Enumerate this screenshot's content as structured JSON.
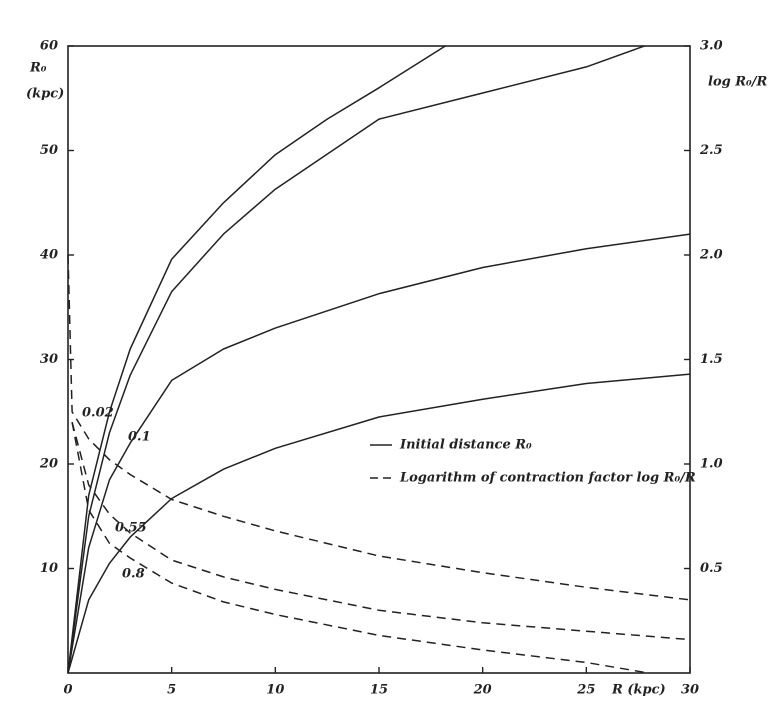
{
  "chart_data": {
    "type": "line",
    "x_label": "R (kpc)",
    "y_label": "R₀",
    "y_unit": "(kpc)",
    "y2_label": "log R₀/R",
    "xlim": [
      0,
      30
    ],
    "xticks": [
      0,
      5,
      10,
      15,
      20,
      25,
      30
    ],
    "ylim": [
      0,
      60
    ],
    "yticks": [
      10,
      20,
      30,
      40,
      50,
      60
    ],
    "y2lim": [
      0,
      3
    ],
    "y2ticks": [
      0.5,
      {
        "value": 1,
        "label": "1.0"
      },
      1.5,
      {
        "value": 2,
        "label": "2.0"
      },
      2.5,
      {
        "value": 3,
        "label": "3.0"
      }
    ],
    "legend": [
      {
        "label": "Initial distance R₀",
        "style": "solid"
      },
      {
        "label": "Logarithm of contraction factor log R₀/R",
        "style": "dashed"
      }
    ],
    "series": [
      {
        "label": "0.02",
        "style": "solid",
        "color": "#222",
        "x": [
          0,
          1,
          2,
          3,
          5,
          7.5,
          10,
          12.5,
          15,
          18.2
        ],
        "values": [
          0,
          17,
          25,
          31,
          39.6,
          45,
          49.6,
          53,
          56,
          60
        ]
      },
      {
        "label": "0.1",
        "style": "solid",
        "color": "#222",
        "x": [
          0,
          1,
          2,
          3,
          5,
          7.5,
          10,
          15,
          20,
          25,
          27.8
        ],
        "values": [
          0,
          15,
          23,
          28.5,
          36.5,
          42,
          46.3,
          53,
          55.5,
          58,
          60
        ]
      },
      {
        "label": "0.55",
        "style": "solid",
        "color": "#222",
        "x": [
          0,
          1,
          2,
          3,
          5,
          7.5,
          10,
          15,
          20,
          25,
          30
        ],
        "values": [
          0,
          12,
          18.5,
          22,
          28,
          31,
          33,
          36.3,
          38.8,
          40.6,
          42
        ]
      },
      {
        "label": "0.8",
        "style": "solid",
        "color": "#222",
        "x": [
          0,
          1,
          2,
          3,
          5,
          7.5,
          10,
          15,
          20,
          25,
          30
        ],
        "values": [
          0,
          7,
          10.5,
          13,
          16.7,
          19.5,
          21.5,
          24.5,
          26.2,
          27.7,
          28.6
        ]
      },
      {
        "style": "dashed",
        "axis": "y2",
        "color": "#222",
        "x": [
          0,
          0.2,
          1,
          2,
          3,
          5,
          7.5,
          10,
          15,
          20,
          25,
          30
        ],
        "values": [
          2.0,
          1.25,
          1.12,
          1.02,
          0.95,
          0.83,
          0.75,
          0.68,
          0.56,
          0.48,
          0.41,
          0.35
        ]
      },
      {
        "style": "dashed",
        "axis": "y2",
        "color": "#222",
        "x": [
          0.2,
          1,
          2,
          3,
          5,
          7.5,
          10,
          15,
          20,
          25,
          30
        ],
        "values": [
          1.2,
          0.9,
          0.76,
          0.67,
          0.54,
          0.46,
          0.4,
          0.3,
          0.24,
          0.2,
          0.16
        ]
      },
      {
        "style": "dashed",
        "axis": "y2",
        "color": "#222",
        "x": [
          0.2,
          1,
          2,
          3,
          5,
          7.5,
          10,
          15,
          20,
          25,
          28
        ],
        "values": [
          1.2,
          0.78,
          0.62,
          0.55,
          0.43,
          0.34,
          0.28,
          0.18,
          0.11,
          0.05,
          0
        ]
      }
    ]
  }
}
